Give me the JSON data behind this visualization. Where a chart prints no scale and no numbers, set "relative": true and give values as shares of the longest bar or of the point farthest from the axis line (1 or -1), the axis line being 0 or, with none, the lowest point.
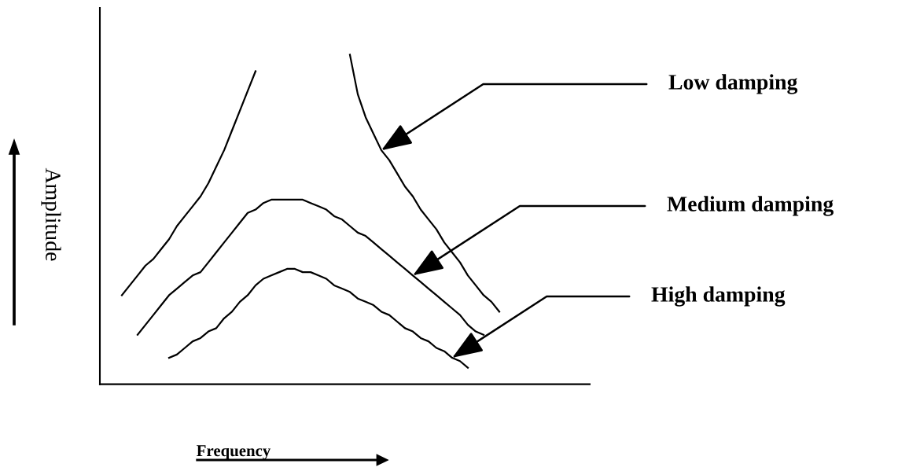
{
  "chart_data": {
    "type": "line",
    "relative": true,
    "xlabel": "Frequency",
    "ylabel": "Amplitude",
    "grid": false,
    "marker": "none",
    "line_style": "solid",
    "categories": [
      null,
      null,
      null,
      null,
      null,
      null,
      null,
      null,
      null,
      null,
      null,
      null,
      null,
      null,
      null,
      null,
      null,
      null,
      null,
      null,
      null,
      null,
      null,
      null,
      null,
      null,
      null,
      null,
      null,
      null,
      null,
      null,
      null,
      null,
      null,
      null,
      null,
      null,
      null,
      null,
      null,
      null,
      null,
      null,
      null,
      null,
      null,
      null,
      null
    ],
    "series": [
      {
        "color": "#000000",
        "values": [
          0.27,
          0.3,
          0.33,
          0.36,
          0.38,
          0.41,
          0.44,
          0.48,
          0.51,
          0.54,
          0.57,
          0.61,
          0.66,
          0.71,
          0.77,
          0.83,
          0.89,
          0.95,
          null,
          null,
          null,
          null,
          null,
          null,
          null,
          null,
          null,
          null,
          null,
          null,
          null,
          null,
          null,
          null,
          null,
          null,
          null,
          null,
          null,
          null,
          null,
          null,
          null,
          null,
          null,
          null,
          null,
          null,
          null
        ]
      },
      {
        "color": "#000000",
        "values": [
          null,
          null,
          null,
          null,
          null,
          null,
          null,
          null,
          null,
          null,
          null,
          null,
          null,
          null,
          null,
          null,
          null,
          null,
          null,
          null,
          null,
          null,
          null,
          null,
          null,
          null,
          null,
          null,
          null,
          1.0,
          0.88,
          0.81,
          0.76,
          0.71,
          0.68,
          0.64,
          0.6,
          0.57,
          0.53,
          0.5,
          0.47,
          0.43,
          0.4,
          0.37,
          0.33,
          0.3,
          0.27,
          0.25,
          0.22
        ]
      },
      {
        "color": "#000000",
        "values": [
          null,
          null,
          0.15,
          0.18,
          0.21,
          0.24,
          0.27,
          0.29,
          0.31,
          0.33,
          0.34,
          0.37,
          0.4,
          0.43,
          0.46,
          0.49,
          0.52,
          0.53,
          0.55,
          0.56,
          0.56,
          0.56,
          0.56,
          0.56,
          0.55,
          0.54,
          0.53,
          0.51,
          0.5,
          0.48,
          0.46,
          0.45,
          0.43,
          0.41,
          0.39,
          0.37,
          0.35,
          0.33,
          0.31,
          0.29,
          0.27,
          0.25,
          0.23,
          0.21,
          0.18,
          0.16,
          0.15,
          null,
          null
        ]
      },
      {
        "color": "#000000",
        "values": [
          null,
          null,
          null,
          null,
          null,
          null,
          0.08,
          0.09,
          0.11,
          0.13,
          0.14,
          0.16,
          0.17,
          0.2,
          0.22,
          0.25,
          0.27,
          0.3,
          0.32,
          0.33,
          0.34,
          0.35,
          0.35,
          0.34,
          0.34,
          0.33,
          0.32,
          0.3,
          0.29,
          0.28,
          0.26,
          0.25,
          0.24,
          0.22,
          0.21,
          0.19,
          0.17,
          0.16,
          0.14,
          0.13,
          0.11,
          0.1,
          0.08,
          0.07,
          0.05,
          null,
          null,
          null,
          null
        ]
      }
    ],
    "annotations": [
      "Low damping",
      "Medium damping",
      "High damping"
    ]
  }
}
